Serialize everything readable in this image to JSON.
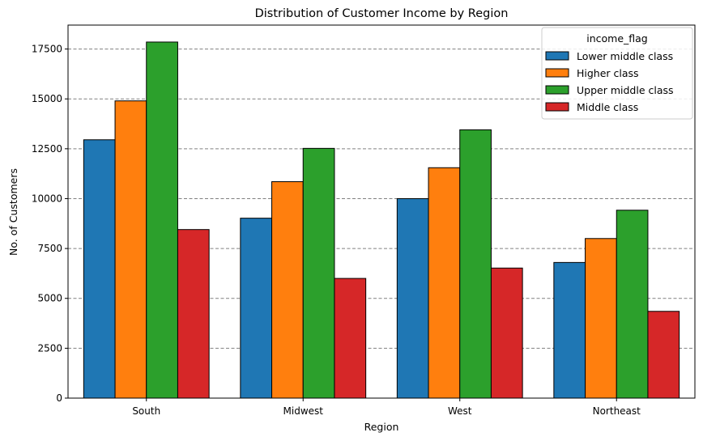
{
  "chart_data": {
    "type": "bar",
    "title": "Distribution of Customer Income by Region",
    "xlabel": "Region",
    "ylabel": "No. of Customers",
    "categories": [
      "South",
      "Midwest",
      "West",
      "Northeast"
    ],
    "series": [
      {
        "name": "Lower middle class",
        "color": "#1f77b4",
        "values": [
          12950,
          9020,
          10000,
          6800
        ]
      },
      {
        "name": "Higher class",
        "color": "#ff7f0e",
        "values": [
          14900,
          10850,
          11550,
          8000
        ]
      },
      {
        "name": "Upper middle class",
        "color": "#2ca02c",
        "values": [
          17850,
          12520,
          13450,
          9420
        ]
      },
      {
        "name": "Middle class",
        "color": "#d62728",
        "values": [
          8450,
          6000,
          6520,
          4350
        ]
      }
    ],
    "ylim": [
      0,
      18700
    ],
    "yticks": [
      0,
      2500,
      5000,
      7500,
      10000,
      12500,
      15000,
      17500
    ],
    "grid": "y-dashed",
    "legend": {
      "title": "income_flag",
      "placement": "top-right"
    }
  }
}
